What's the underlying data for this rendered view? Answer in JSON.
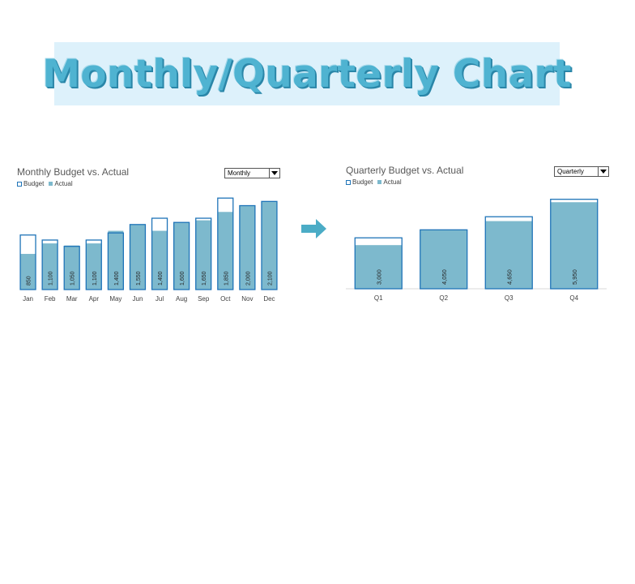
{
  "banner": {
    "title": "Monthly/Quarterly Chart"
  },
  "arrow_icon": "right-arrow-icon",
  "colors": {
    "budget_outline": "#1f74b8",
    "actual_fill": "#7db9cd",
    "banner_bg": "#ddf1fb",
    "banner_text": "#4fb3d1"
  },
  "monthly": {
    "title": "Monthly Budget vs. Actual",
    "legend": {
      "budget": "Budget",
      "actual": "Actual"
    },
    "dropdown": {
      "value": "Monthly"
    }
  },
  "quarterly": {
    "title": "Quarterly Budget vs. Actual",
    "legend": {
      "budget": "Budget",
      "actual": "Actual"
    },
    "dropdown": {
      "value": "Quarterly"
    }
  },
  "chart_data": [
    {
      "type": "bar",
      "title": "Monthly Budget vs. Actual",
      "categories": [
        "Jan",
        "Feb",
        "Mar",
        "Apr",
        "May",
        "Jun",
        "Jul",
        "Aug",
        "Sep",
        "Oct",
        "Nov",
        "Dec"
      ],
      "series": [
        {
          "name": "Budget",
          "values": [
            1300,
            1180,
            1030,
            1180,
            1350,
            1550,
            1700,
            1600,
            1700,
            2180,
            2000,
            2100
          ]
        },
        {
          "name": "Actual",
          "values": [
            850,
            1100,
            1050,
            1100,
            1400,
            1550,
            1400,
            1600,
            1650,
            1850,
            2000,
            2100
          ]
        }
      ],
      "data_labels": [
        "850",
        "1,100",
        "1,050",
        "1,100",
        "1,400",
        "1,550",
        "1,400",
        "1,600",
        "1,650",
        "1,850",
        "2,000",
        "2,100"
      ],
      "ylim": [
        0,
        2300
      ],
      "grid": false,
      "legend": "top-left"
    },
    {
      "type": "bar",
      "title": "Quarterly Budget vs. Actual",
      "categories": [
        "Q1",
        "Q2",
        "Q3",
        "Q4"
      ],
      "series": [
        {
          "name": "Budget",
          "values": [
            3500,
            4050,
            4950,
            6150
          ]
        },
        {
          "name": "Actual",
          "values": [
            3000,
            4050,
            4650,
            5950
          ]
        }
      ],
      "data_labels": [
        "3,000",
        "4,050",
        "4,650",
        "5,950"
      ],
      "ylim": [
        0,
        6300
      ],
      "grid": false,
      "legend": "top-left"
    }
  ]
}
